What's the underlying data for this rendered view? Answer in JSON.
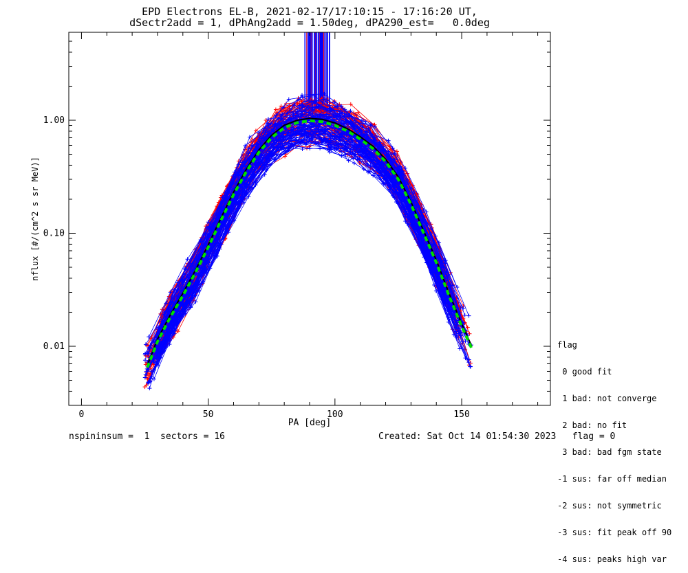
{
  "header": {
    "line1": "EPD Electrons EL-B, 2021-02-17/17:10:15 - 17:16:20 UT,",
    "line2": "dSectr2add = 1, dPhAng2add = 1.50deg, dPA290_est=   0.0deg"
  },
  "chart_data": {
    "type": "line",
    "xlabel": "PA [deg]",
    "ylabel": "nflux [#/(cm^2 s sr MeV)]",
    "xlim": [
      -5,
      185
    ],
    "ylim": [
      0.003,
      6.0
    ],
    "yscale": "log",
    "x_ticks": [
      0,
      50,
      100,
      150
    ],
    "y_ticks": [
      0.01,
      0.1,
      1.0
    ],
    "y_tick_labels": [
      "0.01",
      "0.10",
      "1.00"
    ],
    "grid": false,
    "colors": {
      "up": "#ff0000",
      "down": "#0000ff",
      "fit": "#00e000",
      "median": "#000000"
    },
    "fit_curve": {
      "color": "#00e000",
      "style": "dashed",
      "x": [
        26,
        30,
        35,
        40,
        45,
        50,
        55,
        60,
        65,
        70,
        75,
        80,
        85,
        90,
        95,
        100,
        105,
        110,
        115,
        120,
        125,
        130,
        135,
        140,
        145,
        150,
        154
      ],
      "y": [
        0.0065,
        0.011,
        0.018,
        0.028,
        0.045,
        0.075,
        0.13,
        0.22,
        0.35,
        0.52,
        0.7,
        0.86,
        0.95,
        0.99,
        0.97,
        0.9,
        0.8,
        0.68,
        0.56,
        0.43,
        0.3,
        0.18,
        0.1,
        0.055,
        0.028,
        0.015,
        0.0095
      ]
    },
    "data_spikes": {
      "x_range": [
        88,
        98
      ],
      "y_from": 1.2,
      "y_to": 6.0
    }
  },
  "legend": {
    "title": "flag",
    "items": [
      " 0 good fit",
      " 1 bad: not converge",
      " 2 bad: no fit",
      " 3 bad: bad fgm state",
      "-1 sus: far off median",
      "-2 sus: not symmetric",
      "-3 sus: fit peak off 90",
      "-4 sus: peaks high var"
    ]
  },
  "footer": {
    "left": "nspininsum =  1  sectors = 16",
    "right": "Created: Sat Oct 14 01:54:30 2023   flag = 0"
  }
}
